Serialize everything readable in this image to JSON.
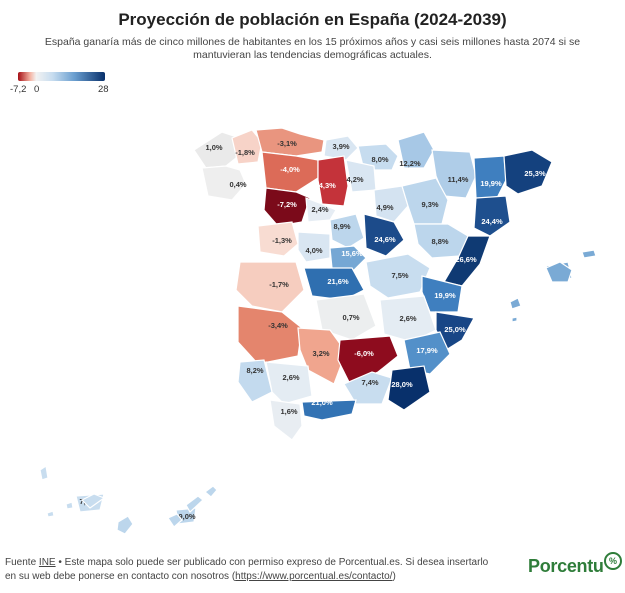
{
  "title": "Proyección de población en España (2024-2039)",
  "subtitle": "España ganaría más de cinco millones de habitantes en los 15 próximos años y casi seis millones hasta 2074 si se mantuvieran las tendencias demográficas actuales.",
  "legend": {
    "min_label": "-7,2",
    "zero_label": "0",
    "max_label": "28",
    "colors": [
      "#a50f15",
      "#f4b3a3",
      "#f2f2f2",
      "#c6dcef",
      "#6a9ecf",
      "#08306b"
    ]
  },
  "footer": {
    "prefix": "Fuente ",
    "source": "INE",
    "text1": " • Este mapa solo puede ser publicado con permiso expreso de Porcentual.es. Si desea insertarlo en su web debe ponerse en contacto con nosotros (",
    "link": "https://www.porcentual.es/contacto/",
    "text2": ")"
  },
  "logo": {
    "text": "Porcentu",
    "badge": "%"
  },
  "map_data": {
    "type": "choropleth",
    "unit": "%",
    "regions": [
      {
        "label": "1,0%",
        "value": 1.0,
        "color": "#eaeaea"
      },
      {
        "label": "-1,8%",
        "value": -1.8,
        "color": "#f7d3c8"
      },
      {
        "label": "-3,1%",
        "value": -3.1,
        "color": "#e9957f"
      },
      {
        "label": "0,4%",
        "value": 0.4,
        "color": "#eeeeee"
      },
      {
        "label": "-4,0%",
        "value": -4.0,
        "color": "#dc6b58"
      },
      {
        "label": "3,9%",
        "value": 3.9,
        "color": "#d9e6f2"
      },
      {
        "label": "8,0%",
        "value": 8.0,
        "color": "#c6dcef"
      },
      {
        "label": "12,2%",
        "value": 12.2,
        "color": "#a7c8e6"
      },
      {
        "label": "-7,2%",
        "value": -7.2,
        "color": "#7b0a1a"
      },
      {
        "label": "-4,3%",
        "value": -4.3,
        "color": "#c4333a"
      },
      {
        "label": "4,2%",
        "value": 4.2,
        "color": "#d9e6f2"
      },
      {
        "label": "2,4%",
        "value": 2.4,
        "color": "#e6edf4"
      },
      {
        "label": "11,4%",
        "value": 11.4,
        "color": "#afcde8"
      },
      {
        "label": "19,9%",
        "value": 19.9,
        "color": "#3f7fbf"
      },
      {
        "label": "25,3%",
        "value": 25.3,
        "color": "#14417e"
      },
      {
        "label": "4,9%",
        "value": 4.9,
        "color": "#d4e3f1"
      },
      {
        "label": "9,3%",
        "value": 9.3,
        "color": "#bcd6ec"
      },
      {
        "label": "24,4%",
        "value": 24.4,
        "color": "#1e4f8e"
      },
      {
        "label": "-1,3%",
        "value": -1.3,
        "color": "#f8dcd2"
      },
      {
        "label": "8,9%",
        "value": 8.9,
        "color": "#bcd6ec"
      },
      {
        "label": "24,6%",
        "value": 24.6,
        "color": "#1c4b8a"
      },
      {
        "label": "8,8%",
        "value": 8.8,
        "color": "#bcd6ec"
      },
      {
        "label": "4,0%",
        "value": 4.0,
        "color": "#d9e6f2"
      },
      {
        "label": "15,6%",
        "value": 15.6,
        "color": "#75a7d4"
      },
      {
        "label": "26,6%",
        "value": 26.6,
        "color": "#0f3a73"
      },
      {
        "label": "15,2%",
        "value": 15.2,
        "color": "#7aaad5"
      },
      {
        "label": "-1,7%",
        "value": -1.7,
        "color": "#f6cdbf"
      },
      {
        "label": "21,6%",
        "value": 21.6,
        "color": "#2f6fb0"
      },
      {
        "label": "7,5%",
        "value": 7.5,
        "color": "#c8ddef"
      },
      {
        "label": "19,9%",
        "value": 19.9,
        "color": "#3f7fbf"
      },
      {
        "label": "0,7%",
        "value": 0.7,
        "color": "#eceeef"
      },
      {
        "label": "2,6%",
        "value": 2.6,
        "color": "#e4ecf3"
      },
      {
        "label": "-3,4%",
        "value": -3.4,
        "color": "#e4856d"
      },
      {
        "label": "25,0%",
        "value": 25.0,
        "color": "#184686"
      },
      {
        "label": "3,2%",
        "value": 3.2,
        "color": "#f0a58e"
      },
      {
        "label": "-6,0%",
        "value": -6.0,
        "color": "#8e0c1e"
      },
      {
        "label": "17,9%",
        "value": 17.9,
        "color": "#5390c9"
      },
      {
        "label": "8,2%",
        "value": 8.2,
        "color": "#c3daee"
      },
      {
        "label": "2,6%",
        "value": 2.6,
        "color": "#e4ecf3"
      },
      {
        "label": "7,4%",
        "value": 7.4,
        "color": "#c8ddef"
      },
      {
        "label": "28,0%",
        "value": 28.0,
        "color": "#08306b"
      },
      {
        "label": "21,0%",
        "value": 21.0,
        "color": "#3373b4"
      },
      {
        "label": "1,6%",
        "value": 1.6,
        "color": "#e8edf2"
      },
      {
        "label": "7,4%",
        "value": 7.4,
        "color": "#c8ddef"
      },
      {
        "label": "9,0%",
        "value": 9.0,
        "color": "#bcd6ec"
      }
    ]
  }
}
